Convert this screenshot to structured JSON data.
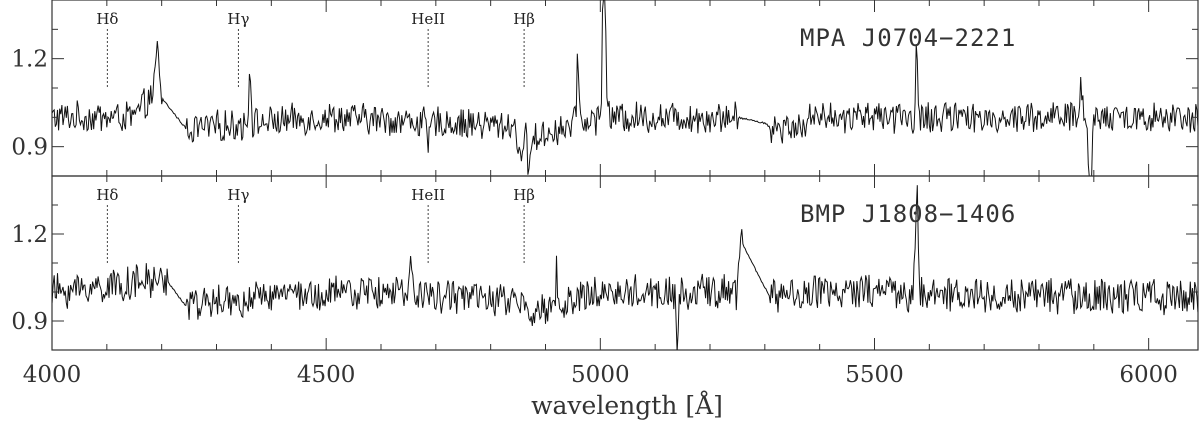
{
  "chart_data": {
    "type": "line",
    "xlabel": "wavelength [Å]",
    "xlim": [
      4000,
      6090
    ],
    "x_ticks": [
      4000,
      4500,
      5000,
      5500,
      6000
    ],
    "x_tick_labels": [
      "4000",
      "4500",
      "5000",
      "5500",
      "6000"
    ],
    "spectral_lines": [
      {
        "label": "Hδ",
        "wavelength": 4101
      },
      {
        "label": "Hγ",
        "wavelength": 4340
      },
      {
        "label": "HeII",
        "wavelength": 4686
      },
      {
        "label": "Hβ",
        "wavelength": 4861
      }
    ],
    "panels": [
      {
        "title": "MPA J0704−2221",
        "ylim": [
          0.8,
          1.4
        ],
        "y_ticks": [
          0.9,
          1.2
        ],
        "y_tick_labels": [
          "0.9",
          "1.2"
        ],
        "noise": 0.035,
        "series": {
          "baseline": [
            [
              4000,
              1.0
            ],
            [
              4150,
              1.0
            ],
            [
              4190,
              1.09
            ],
            [
              4245,
              0.96
            ],
            [
              4500,
              1.0
            ],
            [
              4860,
              0.97
            ],
            [
              4875,
              0.93
            ],
            [
              5000,
              1.0
            ],
            [
              5250,
              1.0
            ],
            [
              5300,
              0.98
            ],
            [
              5315,
              0.96
            ],
            [
              5400,
              1.0
            ],
            [
              6090,
              1.0
            ]
          ],
          "smooth_gaps": [
            [
              4200,
              4245
            ],
            [
              5250,
              5310
            ]
          ],
          "features": [
            {
              "x": 4192,
              "amp": 0.14,
              "width": 3
            },
            {
              "x": 4361,
              "amp": 0.2,
              "width": 2
            },
            {
              "x": 4686,
              "amp": -0.08,
              "width": 3
            },
            {
              "x": 4862,
              "amp": -0.14,
              "width": 8
            },
            {
              "x": 4864,
              "amp": 0.2,
              "width": 1.5
            },
            {
              "x": 4959,
              "amp": 0.24,
              "width": 2
            },
            {
              "x": 5007,
              "amp": 0.7,
              "width": 2.5
            },
            {
              "x": 5577,
              "amp": 0.25,
              "width": 1.5
            },
            {
              "x": 5876,
              "amp": 0.1,
              "width": 3
            },
            {
              "x": 5893,
              "amp": -0.3,
              "width": 3
            }
          ]
        }
      },
      {
        "title": "BMP J1808−1406",
        "ylim": [
          0.8,
          1.4
        ],
        "y_ticks": [
          0.9,
          1.2
        ],
        "y_tick_labels": [
          "0.9",
          "1.2"
        ],
        "noise": 0.04,
        "series": {
          "baseline": [
            [
              4000,
              1.0
            ],
            [
              4195,
              1.04
            ],
            [
              4205,
              1.05
            ],
            [
              4245,
              0.95
            ],
            [
              4400,
              0.98
            ],
            [
              4600,
              1.0
            ],
            [
              4850,
              0.97
            ],
            [
              4868,
              0.92
            ],
            [
              5000,
              1.0
            ],
            [
              5250,
              1.0
            ],
            [
              5255,
              1.18
            ],
            [
              5310,
              0.98
            ],
            [
              5400,
              1.0
            ],
            [
              6090,
              0.98
            ]
          ],
          "smooth_gaps": [
            [
              4210,
              4245
            ],
            [
              5260,
              5310
            ]
          ],
          "features": [
            {
              "x": 4655,
              "amp": 0.1,
              "width": 2
            },
            {
              "x": 4920,
              "amp": 0.12,
              "width": 1.5
            },
            {
              "x": 5140,
              "amp": -0.25,
              "width": 1.5
            },
            {
              "x": 5575,
              "amp": 0.15,
              "width": 2
            },
            {
              "x": 5578,
              "amp": 0.3,
              "width": 1.5
            }
          ]
        }
      }
    ]
  }
}
